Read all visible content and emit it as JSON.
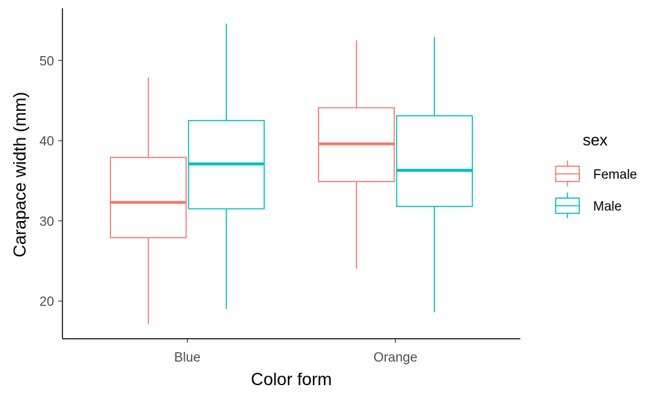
{
  "chart_data": {
    "type": "box",
    "xlabel": "Color form",
    "ylabel": "Carapace width (mm)",
    "categories": [
      "Blue",
      "Orange"
    ],
    "yticks": [
      20,
      30,
      40,
      50
    ],
    "ylim": [
      15.3,
      56.5
    ],
    "grid": false,
    "legend": {
      "title": "sex",
      "placement": "right"
    },
    "series": [
      {
        "name": "Female",
        "color": "#F8766D",
        "boxes": [
          {
            "category": "Blue",
            "min": 17.1,
            "q1": 27.9,
            "median": 32.3,
            "q3": 37.9,
            "max": 47.9
          },
          {
            "category": "Orange",
            "min": 24.0,
            "q1": 34.9,
            "median": 39.6,
            "q3": 44.1,
            "max": 52.5
          }
        ]
      },
      {
        "name": "Male",
        "color": "#00BFC4",
        "boxes": [
          {
            "category": "Blue",
            "min": 19.0,
            "q1": 31.5,
            "median": 37.1,
            "q3": 42.5,
            "max": 54.6
          },
          {
            "category": "Orange",
            "min": 18.6,
            "q1": 31.8,
            "median": 36.3,
            "q3": 43.1,
            "max": 52.9
          }
        ]
      }
    ]
  }
}
